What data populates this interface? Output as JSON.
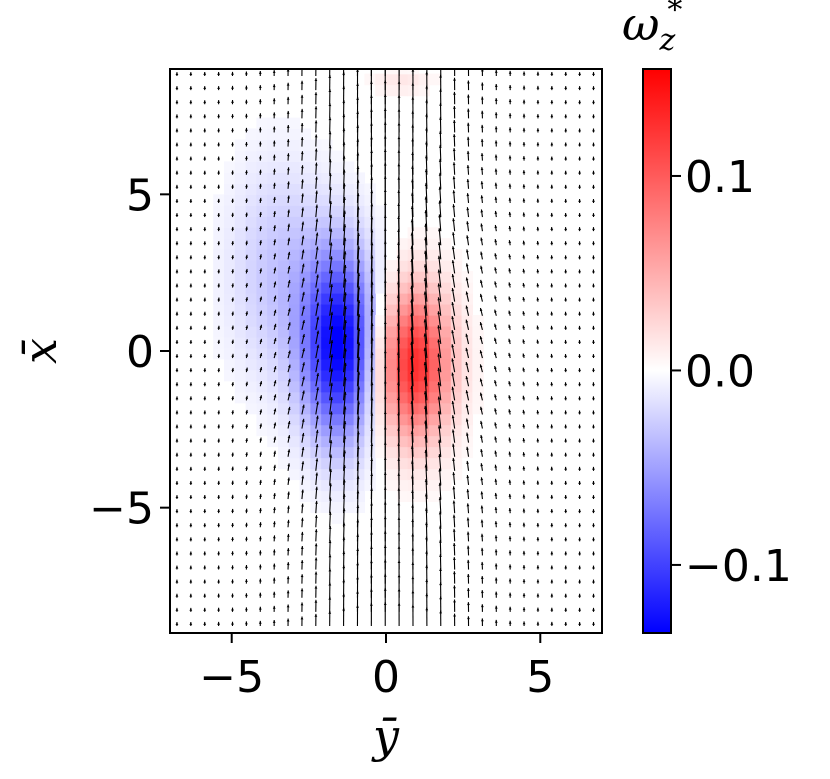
{
  "chart_data": {
    "type": "heatmap",
    "title": "",
    "xlabel": "ȳ",
    "ylabel": "x̄",
    "xlim": [
      -7,
      7
    ],
    "ylim": [
      -9,
      9
    ],
    "xticks": [
      {
        "value": -5,
        "label": "−5"
      },
      {
        "value": 0,
        "label": "0"
      },
      {
        "value": 5,
        "label": "5"
      }
    ],
    "yticks": [
      {
        "value": 5,
        "label": "5"
      },
      {
        "value": 0,
        "label": "0"
      },
      {
        "value": -5,
        "label": "−5"
      }
    ],
    "grid": false,
    "colormap": "bwr",
    "colorbar": {
      "label_base": "ω",
      "label_sub": "z",
      "label_sup": "*",
      "range": [
        -0.135,
        0.155
      ],
      "ticks": [
        {
          "value": 0.1,
          "label": "0.1"
        },
        {
          "value": 0.0,
          "label": "0.0"
        },
        {
          "value": -0.1,
          "label": "−0.1"
        }
      ],
      "low_color": "#0000ff",
      "mid_color": "#ffffff",
      "high_color": "#ff0000"
    },
    "vortices": [
      {
        "sign": "negative",
        "y": -1.5,
        "x": 0.2,
        "peak": -0.135,
        "sigma_y": 0.85,
        "sigma_x": 2.1
      },
      {
        "sign": "positive",
        "y": 0.9,
        "x": -0.4,
        "peak": 0.13,
        "sigma_y": 0.85,
        "sigma_x": 1.7
      }
    ],
    "quiver": {
      "dy": 0.45,
      "dx": 0.45,
      "description": "velocity vectors pointing mainly in +x, strongest near y=0"
    }
  }
}
